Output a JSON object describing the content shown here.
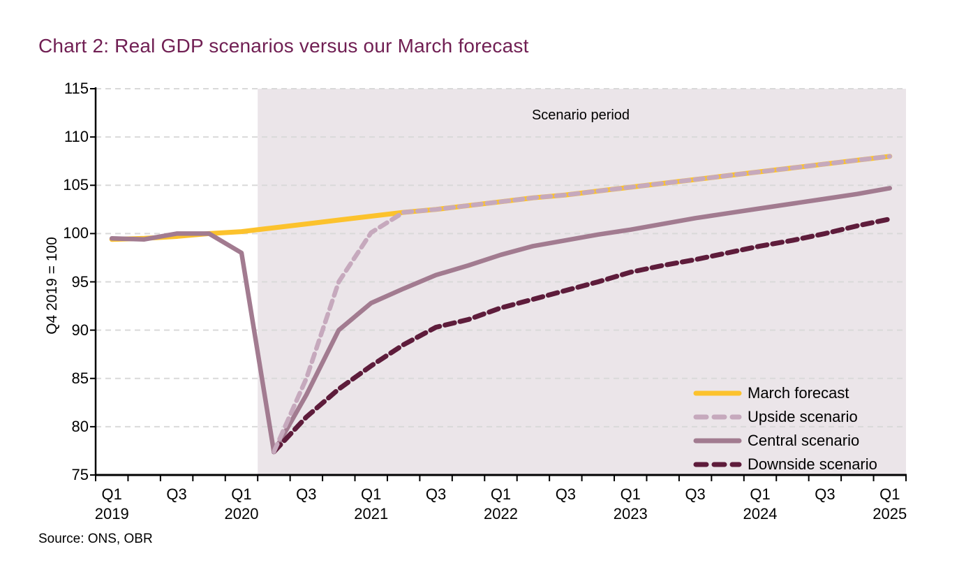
{
  "title": "Chart 2: Real GDP scenarios versus our March forecast",
  "source": "Source: ONS, OBR",
  "annotations": {
    "scenario_period": "Scenario period"
  },
  "y_axis": {
    "label": "Q4 2019 = 100",
    "ticks": [
      115,
      110,
      105,
      100,
      95,
      90,
      85,
      80,
      75
    ]
  },
  "x_axis": {
    "tick_labels": [
      {
        "q": "Q1",
        "year": "2019"
      },
      {
        "q": "Q3",
        "year": ""
      },
      {
        "q": "Q1",
        "year": "2020"
      },
      {
        "q": "Q3",
        "year": ""
      },
      {
        "q": "Q1",
        "year": "2021"
      },
      {
        "q": "Q3",
        "year": ""
      },
      {
        "q": "Q1",
        "year": "2022"
      },
      {
        "q": "Q3",
        "year": ""
      },
      {
        "q": "Q1",
        "year": "2023"
      },
      {
        "q": "Q3",
        "year": ""
      },
      {
        "q": "Q1",
        "year": "2024"
      },
      {
        "q": "Q3",
        "year": ""
      },
      {
        "q": "Q1",
        "year": "2025"
      }
    ]
  },
  "legend": [
    {
      "label": "March forecast",
      "color": "#fcc22d",
      "style": "solid"
    },
    {
      "label": "Upside scenario",
      "color": "#c6a9bd",
      "style": "dashed"
    },
    {
      "label": "Central scenario",
      "color": "#a27b90",
      "style": "solid"
    },
    {
      "label": "Downside scenario",
      "color": "#5e1c3b",
      "style": "dashed"
    }
  ],
  "colors": {
    "title": "#701f53",
    "march": "#fcc22d",
    "upside": "#c6a9bd",
    "central": "#a27b90",
    "downside": "#5e1c3b",
    "shade": "#ebe5e9",
    "gridline": "#d9d9d9",
    "axis": "#000000",
    "text": "#000000"
  },
  "chart_data": {
    "type": "line",
    "title": "Chart 2: Real GDP scenarios versus our March forecast",
    "xlabel": "",
    "ylabel": "Q4 2019 = 100",
    "ylim": [
      75,
      115
    ],
    "grid": "horizontal-dashed",
    "legend_position": "bottom-right",
    "scenario_start": "2020 Q2",
    "x": [
      "2019 Q1",
      "2019 Q2",
      "2019 Q3",
      "2019 Q4",
      "2020 Q1",
      "2020 Q2",
      "2020 Q3",
      "2020 Q4",
      "2021 Q1",
      "2021 Q2",
      "2021 Q3",
      "2021 Q4",
      "2022 Q1",
      "2022 Q2",
      "2022 Q3",
      "2022 Q4",
      "2023 Q1",
      "2023 Q2",
      "2023 Q3",
      "2023 Q4",
      "2024 Q1",
      "2024 Q2",
      "2024 Q3",
      "2024 Q4",
      "2025 Q1"
    ],
    "series": [
      {
        "name": "March forecast",
        "color": "#fcc22d",
        "style": "solid",
        "values": [
          99.4,
          99.5,
          99.7,
          100.0,
          100.2,
          100.6,
          101.0,
          101.4,
          101.8,
          102.2,
          102.5,
          102.9,
          103.3,
          103.7,
          104.0,
          104.4,
          104.8,
          105.2,
          105.6,
          106.0,
          106.4,
          106.8,
          107.2,
          107.6,
          108.0
        ]
      },
      {
        "name": "Upside scenario",
        "color": "#c6a9bd",
        "style": "dashed",
        "values": [
          null,
          null,
          null,
          null,
          null,
          77.4,
          85.0,
          95.0,
          100.1,
          102.2,
          102.5,
          102.9,
          103.3,
          103.7,
          104.0,
          104.4,
          104.8,
          105.2,
          105.6,
          106.0,
          106.4,
          106.8,
          107.2,
          107.6,
          108.0
        ]
      },
      {
        "name": "Central scenario",
        "color": "#a27b90",
        "style": "solid",
        "values": [
          99.5,
          99.4,
          100.0,
          100.0,
          98.0,
          77.4,
          83.3,
          90.0,
          92.8,
          94.3,
          95.7,
          96.7,
          97.8,
          98.7,
          99.3,
          99.9,
          100.4,
          101.0,
          101.6,
          102.1,
          102.6,
          103.1,
          103.6,
          104.1,
          104.7
        ]
      },
      {
        "name": "Downside scenario",
        "color": "#5e1c3b",
        "style": "dashed",
        "values": [
          null,
          null,
          null,
          null,
          null,
          77.4,
          81.0,
          83.9,
          86.3,
          88.5,
          90.3,
          91.1,
          92.3,
          93.2,
          94.1,
          95.0,
          96.0,
          96.7,
          97.3,
          98.0,
          98.7,
          99.3,
          100.0,
          100.8,
          101.5
        ]
      }
    ]
  }
}
